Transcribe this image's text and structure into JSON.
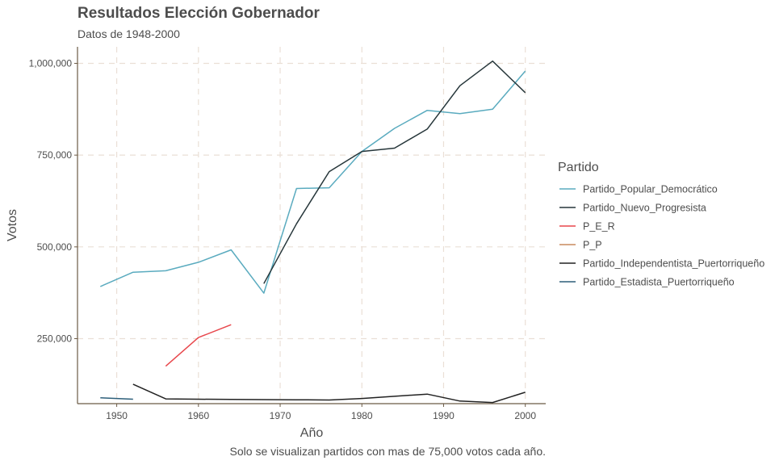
{
  "chart_data": {
    "type": "line",
    "title": "Resultados Elección Gobernador",
    "subtitle": "Datos de 1948-2000",
    "xlabel": "Año",
    "ylabel": "Votos",
    "caption": "Solo se visualizan partidos con mas de 75,000 votos cada año.",
    "xlim": [
      1945.2,
      2002.5
    ],
    "ylim": [
      73000,
      1045000
    ],
    "x_ticks": [
      1950,
      1960,
      1970,
      1980,
      1990,
      2000
    ],
    "x_tick_labels": [
      "1950",
      "1960",
      "1970",
      "1980",
      "1990",
      "2000"
    ],
    "y_ticks": [
      250000,
      500000,
      750000,
      1000000
    ],
    "y_tick_labels": [
      "250,000",
      "500,000",
      "750,000",
      "1,000,000"
    ],
    "grid": true,
    "legend_title": "Partido",
    "legend_position": "right",
    "series": [
      {
        "name": "Partido_Popular_Democrático",
        "color": "#5aabbf",
        "points": [
          [
            1948,
            392000
          ],
          [
            1952,
            431000
          ],
          [
            1956,
            435000
          ],
          [
            1960,
            458000
          ],
          [
            1964,
            492000
          ],
          [
            1968,
            374000
          ],
          [
            1972,
            659000
          ],
          [
            1976,
            661000
          ],
          [
            1980,
            760000
          ],
          [
            1984,
            823000
          ],
          [
            1988,
            872000
          ],
          [
            1992,
            863000
          ],
          [
            1996,
            875000
          ],
          [
            2000,
            979000
          ]
        ]
      },
      {
        "name": "Partido_Nuevo_Progresista",
        "color": "#26363a",
        "points": [
          [
            1968,
            400000
          ],
          [
            1972,
            563000
          ],
          [
            1976,
            705000
          ],
          [
            1980,
            760000
          ],
          [
            1984,
            769000
          ],
          [
            1988,
            821000
          ],
          [
            1992,
            939000
          ],
          [
            1996,
            1006000
          ],
          [
            2000,
            920000
          ]
        ]
      },
      {
        "name": "P_E_R",
        "color": "#e8474c",
        "points": [
          [
            1956,
            175000
          ],
          [
            1960,
            253000
          ],
          [
            1964,
            288000
          ]
        ]
      },
      {
        "name": "P_P",
        "color": "#c98a5e",
        "points": []
      },
      {
        "name": "Partido_Independentista_Puertorriqueño",
        "color": "#222222",
        "points": [
          [
            1952,
            126000
          ],
          [
            1956,
            86000
          ],
          [
            1960,
            85000
          ],
          [
            1964,
            84500
          ],
          [
            1968,
            84000
          ],
          [
            1972,
            83500
          ],
          [
            1976,
            83000
          ],
          [
            1980,
            87000
          ],
          [
            1984,
            93000
          ],
          [
            1988,
            99000
          ],
          [
            1992,
            80000
          ],
          [
            1996,
            76000
          ],
          [
            2000,
            104000
          ]
        ]
      },
      {
        "name": "Partido_Estadista_Puertorriqueño",
        "color": "#2d5f7a",
        "points": [
          [
            1948,
            89000
          ],
          [
            1952,
            85000
          ]
        ]
      }
    ]
  }
}
